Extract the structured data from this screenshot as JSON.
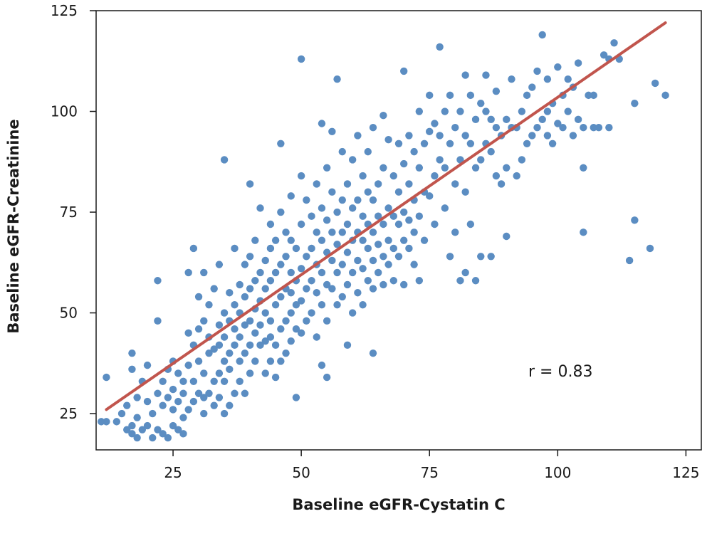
{
  "chart_data": {
    "type": "scatter",
    "title": "",
    "xlabel": "Baseline eGFR-Cystatin C",
    "ylabel": "Baseline eGFR-Creatinine",
    "xlim": [
      10,
      128
    ],
    "ylim": [
      16,
      125
    ],
    "xticks": [
      25,
      50,
      75,
      100,
      125
    ],
    "yticks": [
      25,
      50,
      75,
      100,
      125
    ],
    "grid": false,
    "point_color": "#5b8dc2",
    "line_color": "#c1554d",
    "annotation": "r = 0.83",
    "trend_line": [
      [
        12,
        26
      ],
      [
        121,
        122
      ]
    ],
    "points": [
      [
        11,
        23
      ],
      [
        12,
        23
      ],
      [
        12,
        34
      ],
      [
        14,
        23
      ],
      [
        15,
        25
      ],
      [
        16,
        21
      ],
      [
        16,
        27
      ],
      [
        17,
        20
      ],
      [
        17,
        36
      ],
      [
        17,
        40
      ],
      [
        17,
        22
      ],
      [
        18,
        19
      ],
      [
        18,
        24
      ],
      [
        18,
        29
      ],
      [
        19,
        21
      ],
      [
        19,
        33
      ],
      [
        20,
        22
      ],
      [
        20,
        28
      ],
      [
        20,
        37
      ],
      [
        21,
        19
      ],
      [
        21,
        25
      ],
      [
        22,
        21
      ],
      [
        22,
        30
      ],
      [
        22,
        48
      ],
      [
        22,
        58
      ],
      [
        23,
        20
      ],
      [
        23,
        27
      ],
      [
        23,
        33
      ],
      [
        24,
        19
      ],
      [
        24,
        29
      ],
      [
        24,
        36
      ],
      [
        25,
        22
      ],
      [
        25,
        26
      ],
      [
        25,
        31
      ],
      [
        25,
        38
      ],
      [
        26,
        21
      ],
      [
        26,
        28
      ],
      [
        26,
        35
      ],
      [
        27,
        20
      ],
      [
        27,
        24
      ],
      [
        27,
        30
      ],
      [
        27,
        33
      ],
      [
        28,
        26
      ],
      [
        28,
        37
      ],
      [
        28,
        45
      ],
      [
        28,
        60
      ],
      [
        29,
        28
      ],
      [
        29,
        33
      ],
      [
        29,
        42
      ],
      [
        29,
        66
      ],
      [
        30,
        30
      ],
      [
        30,
        38
      ],
      [
        30,
        46
      ],
      [
        30,
        54
      ],
      [
        31,
        25
      ],
      [
        31,
        29
      ],
      [
        31,
        35
      ],
      [
        31,
        48
      ],
      [
        31,
        60
      ],
      [
        32,
        30
      ],
      [
        32,
        40
      ],
      [
        32,
        44
      ],
      [
        32,
        52
      ],
      [
        33,
        27
      ],
      [
        33,
        33
      ],
      [
        33,
        41
      ],
      [
        33,
        56
      ],
      [
        34,
        29
      ],
      [
        34,
        35
      ],
      [
        34,
        42
      ],
      [
        34,
        47
      ],
      [
        34,
        62
      ],
      [
        35,
        25
      ],
      [
        35,
        33
      ],
      [
        35,
        38
      ],
      [
        35,
        44
      ],
      [
        35,
        50
      ],
      [
        35,
        88
      ],
      [
        36,
        27
      ],
      [
        36,
        36
      ],
      [
        36,
        40
      ],
      [
        36,
        48
      ],
      [
        36,
        55
      ],
      [
        37,
        30
      ],
      [
        37,
        42
      ],
      [
        37,
        46
      ],
      [
        37,
        52
      ],
      [
        37,
        66
      ],
      [
        38,
        33
      ],
      [
        38,
        38
      ],
      [
        38,
        44
      ],
      [
        38,
        50
      ],
      [
        38,
        57
      ],
      [
        39,
        30
      ],
      [
        39,
        40
      ],
      [
        39,
        47
      ],
      [
        39,
        54
      ],
      [
        39,
        62
      ],
      [
        40,
        35
      ],
      [
        40,
        42
      ],
      [
        40,
        48
      ],
      [
        40,
        56
      ],
      [
        40,
        64
      ],
      [
        40,
        82
      ],
      [
        41,
        38
      ],
      [
        41,
        45
      ],
      [
        41,
        51
      ],
      [
        41,
        58
      ],
      [
        41,
        68
      ],
      [
        42,
        42
      ],
      [
        42,
        47
      ],
      [
        42,
        53
      ],
      [
        42,
        60
      ],
      [
        42,
        76
      ],
      [
        43,
        35
      ],
      [
        43,
        43
      ],
      [
        43,
        50
      ],
      [
        43,
        56
      ],
      [
        43,
        63
      ],
      [
        44,
        38
      ],
      [
        44,
        44
      ],
      [
        44,
        48
      ],
      [
        44,
        58
      ],
      [
        44,
        66
      ],
      [
        44,
        72
      ],
      [
        45,
        34
      ],
      [
        45,
        42
      ],
      [
        45,
        52
      ],
      [
        45,
        60
      ],
      [
        45,
        68
      ],
      [
        46,
        38
      ],
      [
        46,
        46
      ],
      [
        46,
        54
      ],
      [
        46,
        62
      ],
      [
        46,
        75
      ],
      [
        46,
        92
      ],
      [
        47,
        40
      ],
      [
        47,
        48
      ],
      [
        47,
        56
      ],
      [
        47,
        64
      ],
      [
        47,
        70
      ],
      [
        48,
        43
      ],
      [
        48,
        50
      ],
      [
        48,
        55
      ],
      [
        48,
        60
      ],
      [
        48,
        68
      ],
      [
        48,
        79
      ],
      [
        49,
        29
      ],
      [
        49,
        46
      ],
      [
        49,
        52
      ],
      [
        49,
        58
      ],
      [
        49,
        66
      ],
      [
        50,
        45
      ],
      [
        50,
        53
      ],
      [
        50,
        61
      ],
      [
        50,
        72
      ],
      [
        50,
        84
      ],
      [
        50,
        113
      ],
      [
        51,
        48
      ],
      [
        51,
        56
      ],
      [
        51,
        64
      ],
      [
        51,
        78
      ],
      [
        52,
        50
      ],
      [
        52,
        58
      ],
      [
        52,
        66
      ],
      [
        52,
        74
      ],
      [
        53,
        44
      ],
      [
        53,
        55
      ],
      [
        53,
        62
      ],
      [
        53,
        70
      ],
      [
        53,
        82
      ],
      [
        54,
        37
      ],
      [
        54,
        52
      ],
      [
        54,
        60
      ],
      [
        54,
        68
      ],
      [
        54,
        76
      ],
      [
        54,
        97
      ],
      [
        55,
        34
      ],
      [
        55,
        48
      ],
      [
        55,
        57
      ],
      [
        55,
        65
      ],
      [
        55,
        73
      ],
      [
        55,
        86
      ],
      [
        56,
        56
      ],
      [
        56,
        63
      ],
      [
        56,
        70
      ],
      [
        56,
        80
      ],
      [
        56,
        95
      ],
      [
        57,
        52
      ],
      [
        57,
        60
      ],
      [
        57,
        67
      ],
      [
        57,
        75
      ],
      [
        57,
        108
      ],
      [
        58,
        54
      ],
      [
        58,
        62
      ],
      [
        58,
        70
      ],
      [
        58,
        78
      ],
      [
        58,
        90
      ],
      [
        59,
        42
      ],
      [
        59,
        57
      ],
      [
        59,
        65
      ],
      [
        59,
        72
      ],
      [
        59,
        82
      ],
      [
        60,
        50
      ],
      [
        60,
        60
      ],
      [
        60,
        68
      ],
      [
        60,
        76
      ],
      [
        60,
        88
      ],
      [
        61,
        55
      ],
      [
        61,
        63
      ],
      [
        61,
        70
      ],
      [
        61,
        78
      ],
      [
        61,
        94
      ],
      [
        62,
        52
      ],
      [
        62,
        61
      ],
      [
        62,
        68
      ],
      [
        62,
        74
      ],
      [
        62,
        84
      ],
      [
        63,
        58
      ],
      [
        63,
        66
      ],
      [
        63,
        72
      ],
      [
        63,
        80
      ],
      [
        63,
        90
      ],
      [
        64,
        40
      ],
      [
        64,
        56
      ],
      [
        64,
        63
      ],
      [
        64,
        70
      ],
      [
        64,
        78
      ],
      [
        64,
        96
      ],
      [
        65,
        60
      ],
      [
        65,
        67
      ],
      [
        65,
        74
      ],
      [
        65,
        82
      ],
      [
        66,
        57
      ],
      [
        66,
        64
      ],
      [
        66,
        72
      ],
      [
        66,
        86
      ],
      [
        66,
        99
      ],
      [
        67,
        62
      ],
      [
        67,
        68
      ],
      [
        67,
        76
      ],
      [
        67,
        93
      ],
      [
        68,
        58
      ],
      [
        68,
        66
      ],
      [
        68,
        74
      ],
      [
        68,
        84
      ],
      [
        69,
        64
      ],
      [
        69,
        72
      ],
      [
        69,
        80
      ],
      [
        69,
        92
      ],
      [
        70,
        57
      ],
      [
        70,
        68
      ],
      [
        70,
        75
      ],
      [
        70,
        87
      ],
      [
        70,
        110
      ],
      [
        71,
        66
      ],
      [
        71,
        73
      ],
      [
        71,
        82
      ],
      [
        71,
        94
      ],
      [
        72,
        62
      ],
      [
        72,
        70
      ],
      [
        72,
        78
      ],
      [
        72,
        90
      ],
      [
        73,
        58
      ],
      [
        73,
        74
      ],
      [
        73,
        86
      ],
      [
        73,
        100
      ],
      [
        74,
        68
      ],
      [
        74,
        80
      ],
      [
        74,
        92
      ],
      [
        75,
        79
      ],
      [
        75,
        95
      ],
      [
        75,
        104
      ],
      [
        76,
        72
      ],
      [
        76,
        84
      ],
      [
        76,
        97
      ],
      [
        77,
        88
      ],
      [
        77,
        94
      ],
      [
        77,
        116
      ],
      [
        78,
        76
      ],
      [
        78,
        86
      ],
      [
        78,
        100
      ],
      [
        79,
        64
      ],
      [
        79,
        92
      ],
      [
        79,
        104
      ],
      [
        80,
        70
      ],
      [
        80,
        82
      ],
      [
        80,
        96
      ],
      [
        81,
        58
      ],
      [
        81,
        88
      ],
      [
        81,
        100
      ],
      [
        82,
        60
      ],
      [
        82,
        80
      ],
      [
        82,
        94
      ],
      [
        82,
        109
      ],
      [
        83,
        72
      ],
      [
        83,
        92
      ],
      [
        83,
        104
      ],
      [
        84,
        58
      ],
      [
        84,
        86
      ],
      [
        84,
        98
      ],
      [
        85,
        64
      ],
      [
        85,
        88
      ],
      [
        85,
        102
      ],
      [
        86,
        92
      ],
      [
        86,
        100
      ],
      [
        86,
        109
      ],
      [
        87,
        64
      ],
      [
        87,
        90
      ],
      [
        87,
        98
      ],
      [
        88,
        84
      ],
      [
        88,
        96
      ],
      [
        88,
        105
      ],
      [
        89,
        82
      ],
      [
        89,
        94
      ],
      [
        90,
        69
      ],
      [
        90,
        86
      ],
      [
        90,
        98
      ],
      [
        91,
        96
      ],
      [
        91,
        108
      ],
      [
        92,
        84
      ],
      [
        92,
        96
      ],
      [
        93,
        88
      ],
      [
        93,
        100
      ],
      [
        94,
        92
      ],
      [
        94,
        104
      ],
      [
        95,
        94
      ],
      [
        95,
        106
      ],
      [
        96,
        96
      ],
      [
        96,
        110
      ],
      [
        97,
        98
      ],
      [
        97,
        119
      ],
      [
        98,
        94
      ],
      [
        98,
        100
      ],
      [
        98,
        108
      ],
      [
        99,
        92
      ],
      [
        99,
        102
      ],
      [
        100,
        97
      ],
      [
        100,
        111
      ],
      [
        101,
        96
      ],
      [
        101,
        104
      ],
      [
        102,
        100
      ],
      [
        102,
        108
      ],
      [
        103,
        94
      ],
      [
        103,
        106
      ],
      [
        104,
        98
      ],
      [
        104,
        112
      ],
      [
        105,
        70
      ],
      [
        105,
        86
      ],
      [
        105,
        96
      ],
      [
        106,
        104
      ],
      [
        107,
        96
      ],
      [
        107,
        104
      ],
      [
        108,
        96
      ],
      [
        109,
        114
      ],
      [
        110,
        96
      ],
      [
        110,
        113
      ],
      [
        111,
        117
      ],
      [
        112,
        113
      ],
      [
        114,
        63
      ],
      [
        115,
        73
      ],
      [
        115,
        102
      ],
      [
        118,
        66
      ],
      [
        119,
        107
      ],
      [
        121,
        104
      ]
    ]
  }
}
